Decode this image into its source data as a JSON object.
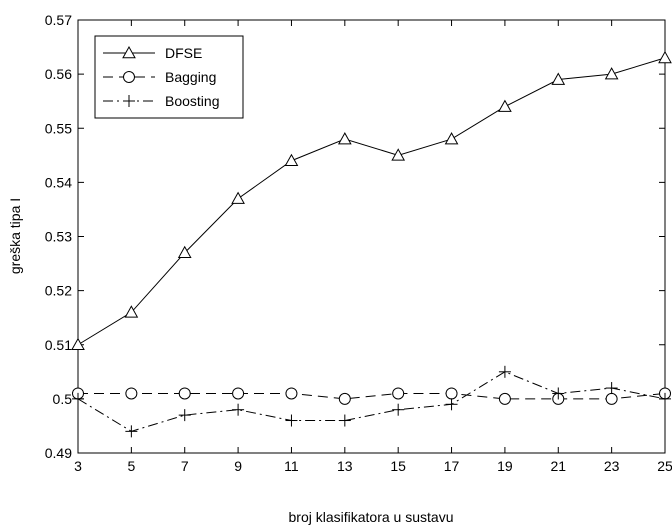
{
  "chart_data": {
    "type": "line",
    "title": "",
    "xlabel": "broj klasifikatora u sustavu",
    "ylabel": "greška tipa I",
    "x": [
      3,
      5,
      7,
      9,
      11,
      13,
      15,
      17,
      19,
      21,
      23,
      25
    ],
    "xlim": [
      3,
      25
    ],
    "ylim": [
      0.49,
      0.57
    ],
    "xticks": [
      3,
      5,
      7,
      9,
      11,
      13,
      15,
      17,
      19,
      21,
      23,
      25
    ],
    "yticks": [
      0.49,
      0.5,
      0.51,
      0.52,
      0.53,
      0.54,
      0.55,
      0.56,
      0.57
    ],
    "grid": false,
    "legend_position": "top-left",
    "series": [
      {
        "name": "DFSE",
        "marker": "triangle",
        "line_style": "solid",
        "values": [
          0.51,
          0.516,
          0.527,
          0.537,
          0.544,
          0.548,
          0.545,
          0.548,
          0.554,
          0.559,
          0.56,
          0.563
        ]
      },
      {
        "name": "Bagging",
        "marker": "circle",
        "line_style": "dashed",
        "values": [
          0.501,
          0.501,
          0.501,
          0.501,
          0.501,
          0.5,
          0.501,
          0.501,
          0.5,
          0.5,
          0.5,
          0.501
        ]
      },
      {
        "name": "Boosting",
        "marker": "plus",
        "line_style": "dashdot",
        "values": [
          0.5,
          0.494,
          0.497,
          0.498,
          0.496,
          0.496,
          0.498,
          0.499,
          0.505,
          0.501,
          0.502,
          0.5
        ]
      }
    ]
  }
}
